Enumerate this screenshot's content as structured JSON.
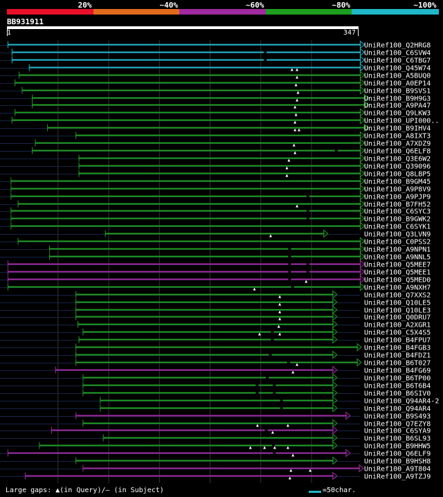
{
  "legend": {
    "segments": [
      {
        "color": "#e8102a",
        "label": "20%"
      },
      {
        "color": "#e06a1c",
        "label": "~40%"
      },
      {
        "color": "#a02aa0",
        "label": "~60%"
      },
      {
        "color": "#1e9e1e",
        "label": "~80%"
      },
      {
        "color": "#20b8c8",
        "label": "~100%"
      }
    ]
  },
  "query": {
    "name": "BB931911",
    "start": "1",
    "end": "347",
    "length": 347
  },
  "colors": {
    "cyan": "#20b8c8",
    "green": "#1e9e1e",
    "purple": "#a02aa0",
    "grid": "#333",
    "row_line": "#182448"
  },
  "hits": [
    {
      "label": "UniRef100_Q2HRG8",
      "start": 2,
      "end": 350,
      "color": "cyan",
      "gaps": [],
      "marks": []
    },
    {
      "label": "UniRef100_C6SVW4",
      "start": 6,
      "end": 350,
      "color": "cyan",
      "gaps": [
        255
      ],
      "marks": []
    },
    {
      "label": "UniRef100_C6TBG7",
      "start": 6,
      "end": 350,
      "color": "cyan",
      "gaps": [
        255
      ],
      "marks": []
    },
    {
      "label": "UniRef100_Q45W74",
      "start": 23,
      "end": 350,
      "color": "cyan",
      "gaps": [],
      "marks": [
        282,
        287
      ]
    },
    {
      "label": "UniRef100_A5BUQ0",
      "start": 13,
      "end": 350,
      "color": "green",
      "gaps": [],
      "marks": [
        287
      ]
    },
    {
      "label": "UniRef100_A0EP14",
      "start": 9,
      "end": 350,
      "color": "green",
      "gaps": [],
      "marks": [
        286
      ]
    },
    {
      "label": "UniRef100_B9SVS1",
      "start": 16,
      "end": 350,
      "color": "green",
      "gaps": [],
      "marks": [
        288
      ]
    },
    {
      "label": "UniRef100_B9H9G3",
      "start": 26,
      "end": 354,
      "color": "green",
      "gaps": [],
      "marks": [
        287
      ]
    },
    {
      "label": "UniRef100_A9PA47",
      "start": 26,
      "end": 354,
      "color": "green",
      "gaps": [],
      "marks": [
        285
      ]
    },
    {
      "label": "UniRef100_Q9LKW3",
      "start": 9,
      "end": 350,
      "color": "green",
      "gaps": [],
      "marks": [
        286
      ]
    },
    {
      "label": "UniRef100_UPI000..",
      "start": 6,
      "end": 350,
      "color": "green",
      "gaps": [],
      "marks": [
        285
      ]
    },
    {
      "label": "UniRef100_B9IHV4",
      "start": 41,
      "end": 354,
      "color": "green",
      "gaps": [],
      "marks": [
        285,
        289
      ]
    },
    {
      "label": "UniRef100_A8IXT3",
      "start": 69,
      "end": 350,
      "color": "green",
      "gaps": [],
      "marks": []
    },
    {
      "label": "UniRef100_A7XDZ9",
      "start": 29,
      "end": 350,
      "color": "green",
      "gaps": [],
      "marks": [
        284
      ]
    },
    {
      "label": "UniRef100_Q6ELF8",
      "start": 26,
      "end": 350,
      "color": "green",
      "gaps": [
        325
      ],
      "marks": [
        285
      ]
    },
    {
      "label": "UniRef100_Q3E6W2",
      "start": 72,
      "end": 350,
      "color": "green",
      "gaps": [],
      "marks": [
        279
      ]
    },
    {
      "label": "UniRef100_Q39096",
      "start": 72,
      "end": 350,
      "color": "green",
      "gaps": [],
      "marks": [
        277
      ]
    },
    {
      "label": "UniRef100_Q8LBP5",
      "start": 72,
      "end": 350,
      "color": "green",
      "gaps": [],
      "marks": [
        277
      ]
    },
    {
      "label": "UniRef100_B9GM45",
      "start": 5,
      "end": 350,
      "color": "green",
      "gaps": [],
      "marks": []
    },
    {
      "label": "UniRef100_A9P8V9",
      "start": 5,
      "end": 350,
      "color": "green",
      "gaps": [],
      "marks": []
    },
    {
      "label": "UniRef100_A9PJP9",
      "start": 5,
      "end": 350,
      "color": "green",
      "gaps": [
        297
      ],
      "marks": []
    },
    {
      "label": "UniRef100_B7FH52",
      "start": 12,
      "end": 350,
      "color": "green",
      "gaps": [],
      "marks": [
        287
      ]
    },
    {
      "label": "UniRef100_C6SYC3",
      "start": 5,
      "end": 350,
      "color": "green",
      "gaps": [
        297
      ],
      "marks": []
    },
    {
      "label": "UniRef100_B9GWK2",
      "start": 5,
      "end": 350,
      "color": "green",
      "gaps": [
        297
      ],
      "marks": []
    },
    {
      "label": "UniRef100_C6SYK1",
      "start": 5,
      "end": 350,
      "color": "green",
      "gaps": [],
      "marks": []
    },
    {
      "label": "UniRef100_Q3LVN9",
      "start": 98,
      "end": 314,
      "color": "green",
      "gaps": [],
      "marks": [
        261
      ]
    },
    {
      "label": "UniRef100_C0PSS2",
      "start": 12,
      "end": 350,
      "color": "green",
      "gaps": [],
      "marks": []
    },
    {
      "label": "UniRef100_A9NPN1",
      "start": 43,
      "end": 350,
      "color": "green",
      "gaps": [
        279
      ],
      "marks": []
    },
    {
      "label": "UniRef100_A9NNL5",
      "start": 43,
      "end": 350,
      "color": "green",
      "gaps": [
        279
      ],
      "marks": []
    },
    {
      "label": "UniRef100_Q5MEE7",
      "start": 2,
      "end": 350,
      "color": "purple",
      "gaps": [
        279,
        297
      ],
      "marks": []
    },
    {
      "label": "UniRef100_Q5MEE1",
      "start": 2,
      "end": 350,
      "color": "purple",
      "gaps": [
        279,
        297
      ],
      "marks": []
    },
    {
      "label": "UniRef100_Q5MED0",
      "start": 2,
      "end": 350,
      "color": "purple",
      "gaps": [
        279
      ],
      "marks": [
        296
      ]
    },
    {
      "label": "UniRef100_A9NXH7",
      "start": 2,
      "end": 350,
      "color": "green",
      "gaps": [
        282
      ],
      "marks": [
        245
      ]
    },
    {
      "label": "UniRef100_Q7XXS2",
      "start": 69,
      "end": 323,
      "color": "green",
      "gaps": [],
      "marks": [
        270
      ]
    },
    {
      "label": "UniRef100_Q10LE5",
      "start": 69,
      "end": 323,
      "color": "green",
      "gaps": [],
      "marks": [
        270
      ]
    },
    {
      "label": "UniRef100_Q10LE3",
      "start": 69,
      "end": 323,
      "color": "green",
      "gaps": [],
      "marks": [
        270
      ]
    },
    {
      "label": "UniRef100_Q0DRU7",
      "start": 69,
      "end": 323,
      "color": "green",
      "gaps": [],
      "marks": [
        270
      ]
    },
    {
      "label": "UniRef100_A2XGR1",
      "start": 71,
      "end": 323,
      "color": "green",
      "gaps": [],
      "marks": [
        269
      ]
    },
    {
      "label": "UniRef100_C5X4S5",
      "start": 76,
      "end": 323,
      "color": "green",
      "gaps": [
        262
      ],
      "marks": [
        250,
        270
      ]
    },
    {
      "label": "UniRef100_B4FPU7",
      "start": 72,
      "end": 323,
      "color": "green",
      "gaps": [
        262
      ],
      "marks": []
    },
    {
      "label": "UniRef100_B4FGB3",
      "start": 69,
      "end": 347,
      "color": "green",
      "gaps": [],
      "marks": []
    },
    {
      "label": "UniRef100_B4FDZ1",
      "start": 69,
      "end": 323,
      "color": "green",
      "gaps": [
        260
      ],
      "marks": []
    },
    {
      "label": "UniRef100_B6T027",
      "start": 69,
      "end": 347,
      "color": "green",
      "gaps": [
        278
      ],
      "marks": [
        287
      ]
    },
    {
      "label": "UniRef100_B4FG69",
      "start": 49,
      "end": 323,
      "color": "purple",
      "gaps": [],
      "marks": [
        283
      ]
    },
    {
      "label": "UniRef100_B6TP00",
      "start": 76,
      "end": 323,
      "color": "green",
      "gaps": [
        257
      ],
      "marks": []
    },
    {
      "label": "UniRef100_B6T6B4",
      "start": 76,
      "end": 323,
      "color": "green",
      "gaps": [
        247,
        264
      ],
      "marks": []
    },
    {
      "label": "UniRef100_B6SIV0",
      "start": 76,
      "end": 323,
      "color": "green",
      "gaps": [
        247,
        264
      ],
      "marks": []
    },
    {
      "label": "UniRef100_Q94AR4-2",
      "start": 93,
      "end": 323,
      "color": "green",
      "gaps": [
        271
      ],
      "marks": []
    },
    {
      "label": "UniRef100_Q94AR4",
      "start": 93,
      "end": 323,
      "color": "green",
      "gaps": [
        271
      ],
      "marks": []
    },
    {
      "label": "UniRef100_B9S493",
      "start": 69,
      "end": 336,
      "color": "purple",
      "gaps": [],
      "marks": []
    },
    {
      "label": "UniRef100_Q7EZY8",
      "start": 76,
      "end": 323,
      "color": "green",
      "gaps": [],
      "marks": [
        248,
        278
      ]
    },
    {
      "label": "UniRef100_C6SYA9",
      "start": 45,
      "end": 323,
      "color": "purple",
      "gaps": [
        256
      ],
      "marks": [
        263
      ]
    },
    {
      "label": "UniRef100_B6SL93",
      "start": 96,
      "end": 323,
      "color": "green",
      "gaps": [],
      "marks": []
    },
    {
      "label": "UniRef100_B9HHW5",
      "start": 33,
      "end": 323,
      "color": "green",
      "gaps": [
        263
      ],
      "marks": [
        241,
        255,
        265,
        278
      ]
    },
    {
      "label": "UniRef100_Q6ELF9",
      "start": 2,
      "end": 336,
      "color": "purple",
      "gaps": [
        264
      ],
      "marks": [
        283
      ]
    },
    {
      "label": "UniRef100_B9HSH8",
      "start": 69,
      "end": 323,
      "color": "green",
      "gaps": [],
      "marks": []
    },
    {
      "label": "UniRef100_A9T804",
      "start": 76,
      "end": 349,
      "color": "purple",
      "gaps": [],
      "marks": [
        281,
        300
      ]
    },
    {
      "label": "UniRef100_A9TZJ9",
      "start": 19,
      "end": 323,
      "color": "purple",
      "gaps": [],
      "marks": [
        280
      ]
    }
  ],
  "footer": {
    "gaps_text": "Large gaps: ▲(in Query)/– (in Subject)",
    "scale_text": "=50char."
  }
}
